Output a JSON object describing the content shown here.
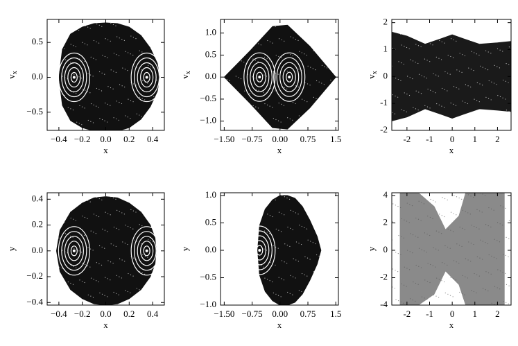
{
  "chart_data": [
    {
      "type": "scatter",
      "x_label": "x",
      "y_label": "v",
      "y_label_sub": "x",
      "xlim": [
        -0.5,
        0.5
      ],
      "ylim": [
        -0.76,
        0.83
      ],
      "xticks": [
        {
          "value": -0.4,
          "label": "−0.4"
        },
        {
          "value": -0.2,
          "label": "−0.2"
        },
        {
          "value": 0,
          "label": "0.0"
        },
        0.2,
        0.4
      ],
      "yticks": [
        {
          "value": -0.5,
          "label": "−0.5"
        },
        {
          "value": 0,
          "label": "0.0"
        },
        0.5
      ],
      "series": [
        {
          "color": "#111111",
          "x": [
            -0.4,
            -0.37,
            -0.3,
            -0.2,
            -0.1,
            0,
            0.1,
            0.2,
            0.3,
            0.38,
            0.44,
            0.46,
            0.44,
            0.38,
            0.3,
            0.2,
            0.1,
            0,
            -0.1,
            -0.2,
            -0.3,
            -0.37
          ],
          "y": [
            0,
            0.4,
            0.62,
            0.72,
            0.77,
            0.78,
            0.77,
            0.72,
            0.6,
            0.42,
            0.2,
            0,
            -0.2,
            -0.42,
            -0.6,
            -0.72,
            -0.77,
            -0.78,
            -0.77,
            -0.72,
            -0.62,
            -0.4
          ]
        },
        {
          "color": "#ffffff",
          "x": [
            -0.27,
            0.35
          ],
          "y": [
            0,
            0
          ]
        }
      ]
    },
    {
      "type": "scatter",
      "x_label": "x",
      "y_label": "v",
      "y_label_sub": "x",
      "xlim": [
        -1.6,
        1.57
      ],
      "ylim": [
        -1.21,
        1.31
      ],
      "xticks": [
        {
          "value": -1.5,
          "label": "−1.50"
        },
        {
          "value": -0.75,
          "label": "−0.75"
        },
        {
          "value": 0,
          "label": "0.00"
        },
        0.75,
        1.5
      ],
      "yticks": [
        {
          "value": -1,
          "label": "−1.0"
        },
        {
          "value": -0.5,
          "label": "−0.5"
        },
        {
          "value": 0,
          "label": "0.0"
        },
        0.5,
        {
          "value": 1,
          "label": "1.0"
        }
      ],
      "series": [
        {
          "color": "#111111",
          "x": [
            -1.5,
            -0.8,
            -0.2,
            0.2,
            0.8,
            1.5,
            0.8,
            0.2,
            -0.2,
            -0.8
          ],
          "y": [
            0,
            0.6,
            1.15,
            1.18,
            0.7,
            0,
            -0.7,
            -1.18,
            -1.15,
            -0.6
          ]
        },
        {
          "color": "#ffffff",
          "x": [
            -0.55,
            0.25
          ],
          "y": [
            0,
            0
          ]
        }
      ]
    },
    {
      "type": "scatter",
      "x_label": "x",
      "y_label": "v",
      "y_label_sub": "x",
      "xlim": [
        -2.67,
        2.6
      ],
      "ylim": [
        -2,
        2.12
      ],
      "xticks": [
        -2,
        -1,
        0,
        1,
        2
      ],
      "yticks": [
        -2,
        -1,
        0,
        1,
        2
      ],
      "series": [
        {
          "color": "#1a1a1a",
          "x": [
            -2.67,
            -2,
            -1.2,
            -0.5,
            0,
            0.5,
            1.2,
            2,
            2.6,
            2.6,
            2,
            1.2,
            0.5,
            0,
            -0.5,
            -1.2,
            -2,
            -2.67
          ],
          "y": [
            1.65,
            1.5,
            1.2,
            1.4,
            1.55,
            1.4,
            1.2,
            1.25,
            1.3,
            -1.3,
            -1.25,
            -1.2,
            -1.4,
            -1.55,
            -1.4,
            -1.2,
            -1.5,
            -1.65
          ]
        }
      ]
    },
    {
      "type": "scatter",
      "x_label": "x",
      "y_label": "y",
      "xlim": [
        -0.5,
        0.5
      ],
      "ylim": [
        -0.42,
        0.45
      ],
      "xticks": [
        {
          "value": -0.4,
          "label": "−0.4"
        },
        {
          "value": -0.2,
          "label": "−0.2"
        },
        {
          "value": 0,
          "label": "0.0"
        },
        0.2,
        0.4
      ],
      "yticks": [
        {
          "value": -0.4,
          "label": "−0.4"
        },
        {
          "value": -0.2,
          "label": "−0.2"
        },
        {
          "value": 0,
          "label": "0.0"
        },
        0.2,
        0.4
      ],
      "series": [
        {
          "color": "#111111",
          "x": [
            -0.42,
            -0.39,
            -0.3,
            -0.2,
            -0.1,
            0,
            0.1,
            0.2,
            0.3,
            0.38,
            0.42,
            0.43,
            0.42,
            0.38,
            0.3,
            0.2,
            0.1,
            0,
            -0.1,
            -0.2,
            -0.3,
            -0.39
          ],
          "y": [
            0,
            0.16,
            0.3,
            0.37,
            0.41,
            0.42,
            0.41,
            0.37,
            0.3,
            0.2,
            0.1,
            0,
            -0.1,
            -0.2,
            -0.3,
            -0.37,
            -0.41,
            -0.42,
            -0.41,
            -0.37,
            -0.3,
            -0.16
          ]
        },
        {
          "color": "#ffffff",
          "x": [
            -0.27,
            0.35
          ],
          "y": [
            0,
            0
          ]
        }
      ]
    },
    {
      "type": "scatter",
      "x_label": "x",
      "y_label": "y",
      "xlim": [
        -1.6,
        1.57
      ],
      "ylim": [
        -1.0,
        1.05
      ],
      "xticks": [
        {
          "value": -1.5,
          "label": "−1.50"
        },
        {
          "value": -0.75,
          "label": "−0.75"
        },
        {
          "value": 0,
          "label": "0.00"
        },
        0.75,
        1.5
      ],
      "yticks": [
        {
          "value": -1,
          "label": "−1.0"
        },
        {
          "value": -0.5,
          "label": "−0.5"
        },
        {
          "value": 0,
          "label": "0.0"
        },
        0.5,
        {
          "value": 1,
          "label": "1.0"
        }
      ],
      "series": [
        {
          "color": "#111111",
          "x": [
            -0.6,
            -0.55,
            -0.4,
            -0.2,
            0,
            0.2,
            0.4,
            0.6,
            0.8,
            1.0,
            1.1,
            1.0,
            0.8,
            0.6,
            0.4,
            0.2,
            0,
            -0.2,
            -0.4,
            -0.55
          ],
          "y": [
            0,
            0.45,
            0.75,
            0.92,
            1.0,
            1.0,
            0.95,
            0.8,
            0.55,
            0.25,
            0,
            -0.25,
            -0.55,
            -0.8,
            -0.95,
            -1.0,
            -1.0,
            -0.92,
            -0.75,
            -0.45
          ]
        },
        {
          "color": "#ffffff",
          "x": [
            -0.55
          ],
          "y": [
            0
          ]
        }
      ]
    },
    {
      "type": "scatter",
      "x_label": "x",
      "y_label": "y",
      "xlim": [
        -2.67,
        2.6
      ],
      "ylim": [
        -4,
        4.2
      ],
      "xticks": [
        -2,
        -1,
        0,
        1,
        2
      ],
      "yticks": [
        -4,
        -2,
        0,
        2,
        4
      ],
      "series": [
        {
          "color": "#8a8a8a",
          "x": [
            -2.3,
            -1.5,
            -0.8,
            -0.3,
            0.3,
            0.6,
            2.3,
            2.3,
            0.6,
            0.3,
            -0.3,
            -0.8,
            -1.5,
            -2.3
          ],
          "y": [
            4.2,
            4.2,
            3.2,
            1.5,
            2.5,
            4.2,
            4.2,
            -4,
            -4,
            -2.5,
            -1.5,
            -3.2,
            -4,
            -4
          ]
        }
      ]
    }
  ]
}
